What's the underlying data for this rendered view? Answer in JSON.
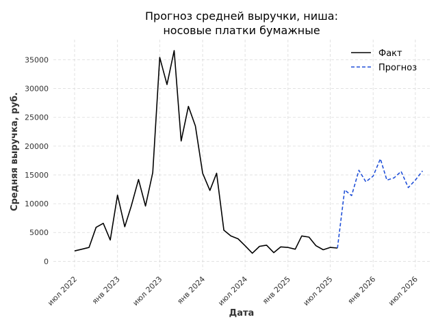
{
  "chart_data": {
    "type": "line",
    "title_line1": "Прогноз средней выручки, ниша:",
    "title_line2": "носовые платки бумажные",
    "xlabel": "Дата",
    "ylabel": "Средняя выручка, руб.",
    "x_range": [
      "2022-04-01",
      "2026-09-01"
    ],
    "ylim": [
      -1500,
      38500
    ],
    "y_ticks": [
      0,
      5000,
      10000,
      15000,
      20000,
      25000,
      30000,
      35000
    ],
    "x_ticks": [
      {
        "date": "2022-07-01",
        "label": "июл 2022"
      },
      {
        "date": "2023-01-01",
        "label": "янв 2023"
      },
      {
        "date": "2023-07-01",
        "label": "июл 2023"
      },
      {
        "date": "2024-01-01",
        "label": "янв 2024"
      },
      {
        "date": "2024-07-01",
        "label": "июл 2024"
      },
      {
        "date": "2025-01-01",
        "label": "янв 2025"
      },
      {
        "date": "2025-07-01",
        "label": "июл 2025"
      },
      {
        "date": "2026-01-01",
        "label": "янв 2026"
      },
      {
        "date": "2026-07-01",
        "label": "июл 2026"
      }
    ],
    "grid": true,
    "legend_position": "top-right",
    "series": [
      {
        "name": "Факт",
        "color": "#000000",
        "style": "solid",
        "points": [
          [
            "2022-07-01",
            1800
          ],
          [
            "2022-08-01",
            2100
          ],
          [
            "2022-09-01",
            2400
          ],
          [
            "2022-10-01",
            5900
          ],
          [
            "2022-11-01",
            6600
          ],
          [
            "2022-12-01",
            3700
          ],
          [
            "2023-01-01",
            11500
          ],
          [
            "2023-02-01",
            6000
          ],
          [
            "2023-03-01",
            9600
          ],
          [
            "2023-04-01",
            14200
          ],
          [
            "2023-05-01",
            9600
          ],
          [
            "2023-06-01",
            15400
          ],
          [
            "2023-07-01",
            35400
          ],
          [
            "2023-08-01",
            30700
          ],
          [
            "2023-09-01",
            36600
          ],
          [
            "2023-10-01",
            20900
          ],
          [
            "2023-11-01",
            26900
          ],
          [
            "2023-12-01",
            23500
          ],
          [
            "2024-01-01",
            15300
          ],
          [
            "2024-02-01",
            12300
          ],
          [
            "2024-03-01",
            15300
          ],
          [
            "2024-04-01",
            5400
          ],
          [
            "2024-05-01",
            4400
          ],
          [
            "2024-06-01",
            3900
          ],
          [
            "2024-07-01",
            2700
          ],
          [
            "2024-08-01",
            1400
          ],
          [
            "2024-09-01",
            2600
          ],
          [
            "2024-10-01",
            2800
          ],
          [
            "2024-11-01",
            1500
          ],
          [
            "2024-12-01",
            2500
          ],
          [
            "2025-01-01",
            2400
          ],
          [
            "2025-02-01",
            2100
          ],
          [
            "2025-03-01",
            4400
          ],
          [
            "2025-04-01",
            4200
          ],
          [
            "2025-05-01",
            2700
          ],
          [
            "2025-06-01",
            2000
          ],
          [
            "2025-07-01",
            2400
          ],
          [
            "2025-08-01",
            2300
          ]
        ]
      },
      {
        "name": "Прогноз",
        "color": "#1f4fd8",
        "style": "dashed",
        "points": [
          [
            "2025-08-01",
            2300
          ],
          [
            "2025-09-01",
            12400
          ],
          [
            "2025-10-01",
            11400
          ],
          [
            "2025-11-01",
            15800
          ],
          [
            "2025-12-01",
            13800
          ],
          [
            "2026-01-01",
            14800
          ],
          [
            "2026-02-01",
            17800
          ],
          [
            "2026-03-01",
            14100
          ],
          [
            "2026-04-01",
            14500
          ],
          [
            "2026-05-01",
            15600
          ],
          [
            "2026-06-01",
            12800
          ],
          [
            "2026-07-01",
            14100
          ],
          [
            "2026-08-01",
            15700
          ]
        ]
      }
    ]
  }
}
